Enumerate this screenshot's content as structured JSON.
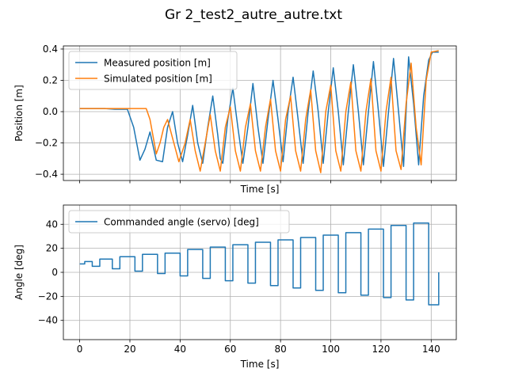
{
  "figure": {
    "title": "Gr 2_test2_autre_autre.txt"
  },
  "chart_data": [
    {
      "type": "line",
      "title": "",
      "xlabel": "Time [s]",
      "ylabel": "Position [m]",
      "xlim": [
        -6.5,
        150
      ],
      "ylim": [
        -0.44,
        0.42
      ],
      "xticks": [
        0,
        20,
        40,
        60,
        80,
        100,
        120,
        140
      ],
      "show_xtick_labels": false,
      "yticks": [
        -0.4,
        -0.2,
        0.0,
        0.2,
        0.4
      ],
      "ytick_labels": [
        "−0.4",
        "−0.2",
        "0.0",
        "0.2",
        "0.4"
      ],
      "grid": true,
      "legend_position": "top-left",
      "series": [
        {
          "name": "Measured position [m]",
          "color": "#1f77b4",
          "x": [
            0,
            10,
            14,
            19,
            21.5,
            24,
            26,
            28,
            30.5,
            33,
            35,
            37,
            39,
            41,
            43,
            45,
            47,
            49,
            51,
            53,
            55,
            56,
            57,
            59,
            61,
            63,
            65,
            67,
            69,
            71,
            73,
            75,
            77,
            79,
            81,
            83,
            85,
            87,
            89,
            91,
            93,
            95,
            97,
            99,
            101,
            103,
            105,
            107,
            109,
            111,
            113,
            115,
            117,
            119,
            121,
            123,
            125,
            127,
            129,
            131,
            133,
            135,
            137,
            139,
            140.5,
            143
          ],
          "y": [
            0.02,
            0.02,
            0.015,
            0.015,
            -0.1,
            -0.31,
            -0.24,
            -0.13,
            -0.31,
            -0.32,
            -0.1,
            0.0,
            -0.2,
            -0.32,
            -0.15,
            0.04,
            -0.2,
            -0.33,
            -0.1,
            0.1,
            -0.15,
            -0.3,
            -0.33,
            -0.05,
            0.15,
            -0.1,
            -0.33,
            -0.1,
            0.18,
            -0.1,
            -0.33,
            -0.05,
            0.2,
            -0.05,
            -0.32,
            0.0,
            0.22,
            -0.05,
            -0.33,
            0.0,
            0.26,
            0.0,
            -0.33,
            0.0,
            0.28,
            0.0,
            -0.34,
            0.0,
            0.3,
            0.0,
            -0.34,
            0.0,
            0.32,
            0.0,
            -0.35,
            0.0,
            0.34,
            0.0,
            -0.35,
            0.35,
            0.05,
            -0.34,
            0.1,
            0.33,
            0.38,
            0.38
          ]
        },
        {
          "name": "Simulated position [m]",
          "color": "#ff7f0e",
          "x": [
            0,
            25,
            26.5,
            28,
            30.5,
            32,
            33.5,
            35,
            37.5,
            39.5,
            42,
            44,
            46,
            48,
            50,
            52,
            54,
            56,
            58,
            60,
            62,
            64,
            66,
            68,
            70,
            72,
            74,
            76,
            78,
            80,
            82,
            84,
            86,
            88,
            90,
            92,
            94,
            96,
            98,
            100,
            102,
            104,
            106,
            108,
            110,
            112,
            114,
            116,
            118,
            120,
            122,
            124,
            126,
            128,
            130,
            132,
            134,
            136,
            138,
            140,
            143
          ],
          "y": [
            0.02,
            0.02,
            0.02,
            -0.05,
            -0.27,
            -0.2,
            -0.1,
            -0.05,
            -0.2,
            -0.32,
            -0.2,
            -0.05,
            -0.25,
            -0.38,
            -0.2,
            -0.02,
            -0.25,
            -0.38,
            -0.1,
            0.03,
            -0.25,
            -0.38,
            -0.1,
            0.05,
            -0.25,
            -0.38,
            -0.1,
            0.08,
            -0.25,
            -0.38,
            -0.05,
            0.1,
            -0.25,
            -0.38,
            -0.05,
            0.14,
            -0.25,
            -0.39,
            0.0,
            0.17,
            -0.25,
            -0.38,
            0.0,
            0.19,
            -0.25,
            -0.38,
            0.0,
            0.21,
            -0.25,
            -0.38,
            0.0,
            0.22,
            -0.25,
            -0.37,
            0.05,
            0.31,
            -0.1,
            -0.34,
            0.2,
            0.38,
            0.39
          ]
        }
      ]
    },
    {
      "type": "line",
      "title": "",
      "xlabel": "Time [s]",
      "ylabel": "Angle [deg]",
      "xlim": [
        -6.5,
        150
      ],
      "ylim": [
        -56,
        56
      ],
      "xticks": [
        0,
        20,
        40,
        60,
        80,
        100,
        120,
        140
      ],
      "xtick_labels": [
        "0",
        "20",
        "40",
        "60",
        "80",
        "100",
        "120",
        "140"
      ],
      "yticks": [
        -40,
        -20,
        0,
        20,
        40
      ],
      "ytick_labels": [
        "−40",
        "−20",
        "0",
        "20",
        "40"
      ],
      "grid": true,
      "legend_position": "top-left",
      "step_style": "hold",
      "series": [
        {
          "name": "Commanded angle (servo) [deg]",
          "color": "#1f77b4",
          "x": [
            0,
            2,
            5,
            8,
            10,
            13,
            16,
            18.5,
            22,
            25,
            28,
            31,
            34,
            37,
            40,
            43,
            46,
            49,
            52,
            55,
            58,
            61,
            64,
            67,
            70,
            73,
            76,
            79,
            82,
            85,
            88,
            91,
            94,
            97,
            100,
            103,
            106,
            109,
            112,
            115,
            118,
            121,
            124,
            127,
            130,
            133,
            136,
            139,
            143
          ],
          "y": [
            7,
            9,
            5,
            11,
            11,
            3,
            13,
            13,
            1,
            15,
            15,
            -1,
            16,
            16,
            -3,
            19,
            19,
            -5,
            21,
            21,
            -7,
            23,
            23,
            -9,
            25,
            25,
            -11,
            27,
            27,
            -13,
            29,
            29,
            -15,
            31,
            31,
            -17,
            33,
            33,
            -19,
            36,
            36,
            -21,
            39,
            39,
            -23,
            41,
            41,
            -27,
            0
          ]
        }
      ]
    }
  ]
}
